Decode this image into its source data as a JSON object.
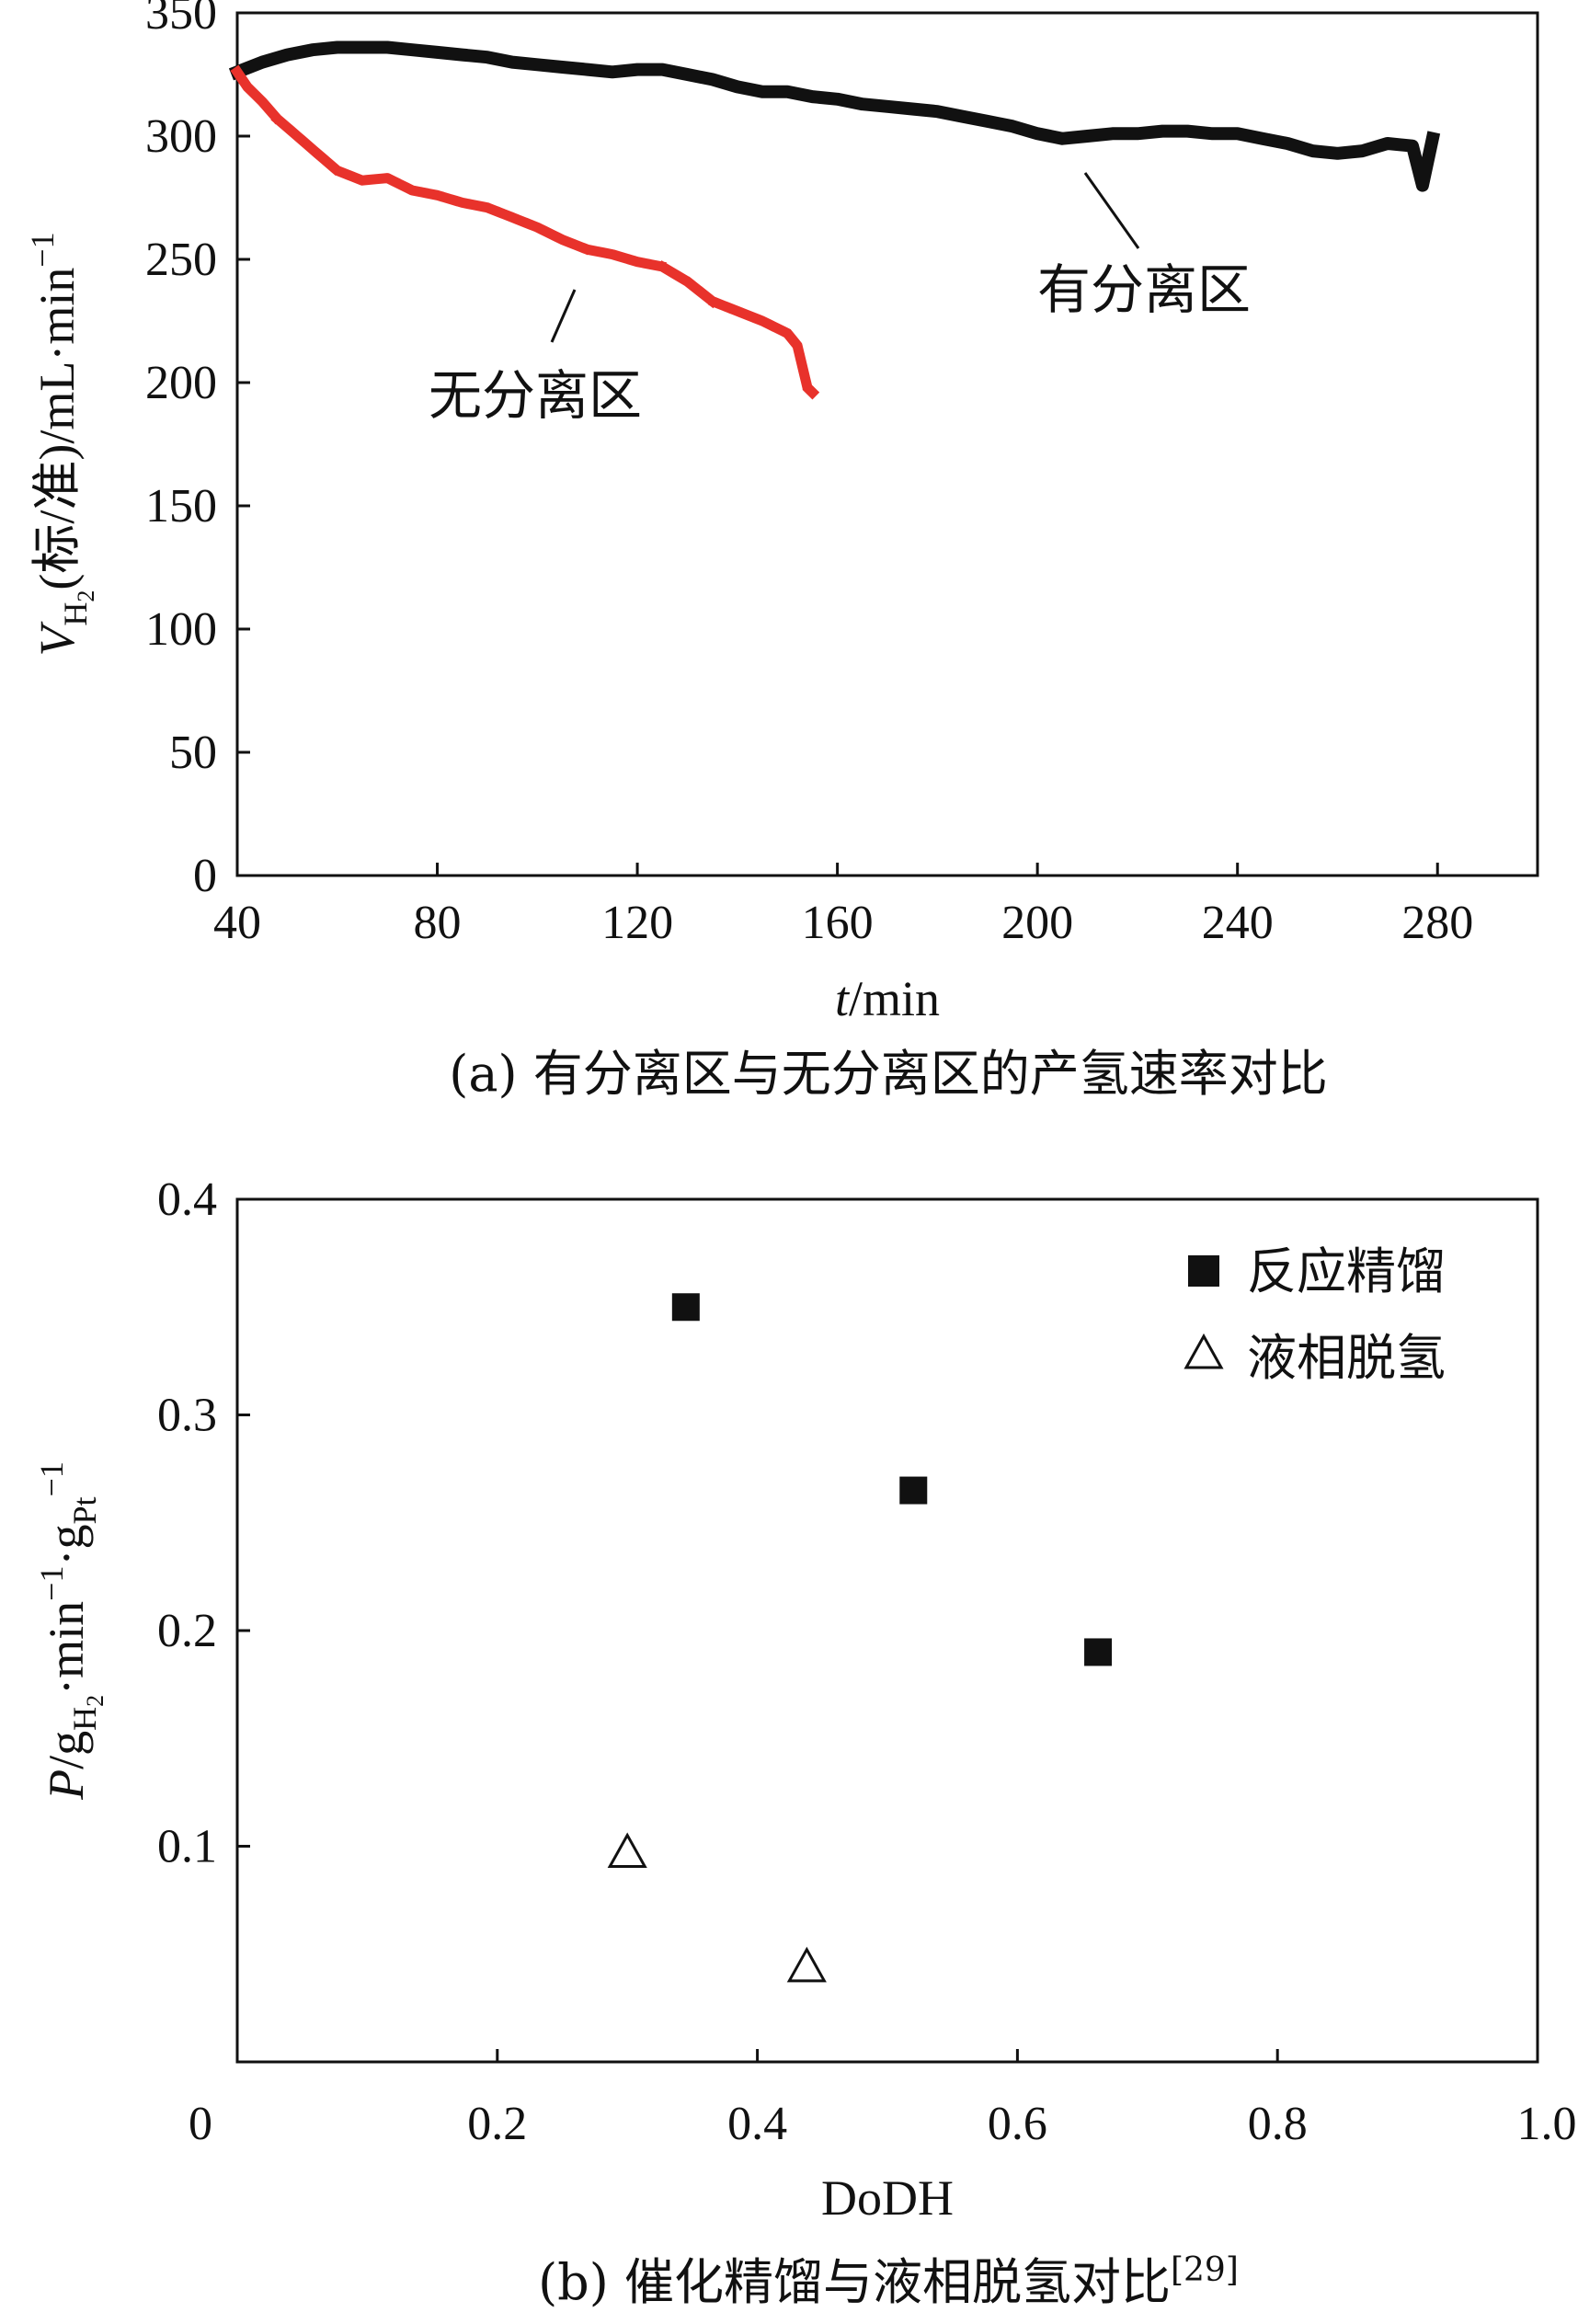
{
  "chart_data": [
    {
      "type": "line",
      "caption": "(a) 有分离区与无分离区的产氢速率对比",
      "xlabel_var": "t",
      "xlabel_unit": "/min",
      "ylabel_main": "V",
      "ylabel_sub": "H",
      "ylabel_subsub": "2",
      "ylabel_rest": "(标/准)/mL·min",
      "ylabel_sup": "−1",
      "xlim": [
        40,
        300
      ],
      "ylim": [
        0,
        350
      ],
      "xticks": [
        40,
        80,
        120,
        160,
        200,
        240,
        280
      ],
      "yticks": [
        0,
        50,
        100,
        150,
        200,
        250,
        300,
        350
      ],
      "grid": false,
      "series": [
        {
          "name": "有分离区",
          "color": "#111111",
          "x": [
            40,
            45,
            50,
            55,
            60,
            65,
            70,
            75,
            80,
            85,
            90,
            95,
            100,
            105,
            110,
            115,
            120,
            125,
            130,
            135,
            140,
            145,
            150,
            155,
            160,
            165,
            170,
            175,
            180,
            185,
            190,
            195,
            200,
            205,
            210,
            215,
            220,
            225,
            230,
            235,
            240,
            245,
            250,
            255,
            260,
            265,
            270,
            275,
            277,
            279
          ],
          "y": [
            326,
            330,
            333,
            335,
            336,
            336,
            336,
            335,
            334,
            333,
            332,
            330,
            329,
            328,
            327,
            326,
            327,
            327,
            325,
            323,
            320,
            318,
            318,
            316,
            315,
            313,
            312,
            311,
            310,
            308,
            306,
            304,
            301,
            299,
            300,
            301,
            301,
            302,
            302,
            301,
            301,
            299,
            297,
            294,
            293,
            294,
            297,
            296,
            280,
            299
          ]
        },
        {
          "name": "无分离区",
          "color": "#e8322b",
          "x": [
            40,
            42,
            45,
            48,
            52,
            56,
            60,
            65,
            70,
            75,
            80,
            85,
            90,
            95,
            100,
            105,
            110,
            115,
            120,
            125,
            130,
            135,
            140,
            145,
            150,
            152,
            154,
            155
          ],
          "y": [
            326,
            320,
            314,
            307,
            300,
            293,
            286,
            282,
            283,
            278,
            276,
            273,
            271,
            267,
            263,
            258,
            254,
            252,
            249,
            247,
            241,
            233,
            229,
            225,
            220,
            215,
            198,
            196
          ]
        }
      ],
      "annotations": [
        {
          "text": "有分离区"
        },
        {
          "text": "无分离区"
        }
      ]
    },
    {
      "type": "scatter",
      "caption_main": "(b) 催化精馏与液相脱氢对比",
      "caption_ref": "[29]",
      "xlabel": "DoDH",
      "ylabel_P": "P",
      "ylabel_g": "/g",
      "ylabel_sub": "H",
      "ylabel_subsub": "2",
      "ylabel_mid": "·min",
      "ylabel_sup1": "−1",
      "ylabel_g2": "·g",
      "ylabel_sub2": "Pt",
      "ylabel_sup2": "−1",
      "xlim": [
        0,
        1.0
      ],
      "ylim": [
        0,
        0.4
      ],
      "xticks": [
        "0",
        "0.2",
        "0.4",
        "0.6",
        "0.8",
        "1.0"
      ],
      "yticks": [
        "0.1",
        "0.2",
        "0.3",
        "0.4"
      ],
      "xtick_values": [
        0,
        0.2,
        0.4,
        0.6,
        0.8,
        1.0
      ],
      "ytick_values": [
        0.1,
        0.2,
        0.3,
        0.4
      ],
      "grid": false,
      "legend_position": "top-right",
      "series": [
        {
          "name": "反应精馏",
          "marker": "filled-square",
          "points": [
            [
              0.345,
              0.35
            ],
            [
              0.52,
              0.265
            ],
            [
              0.662,
              0.19
            ]
          ]
        },
        {
          "name": "液相脱氢",
          "marker": "open-triangle",
          "points": [
            [
              0.3,
              0.097
            ],
            [
              0.438,
              0.044
            ]
          ]
        }
      ]
    }
  ]
}
